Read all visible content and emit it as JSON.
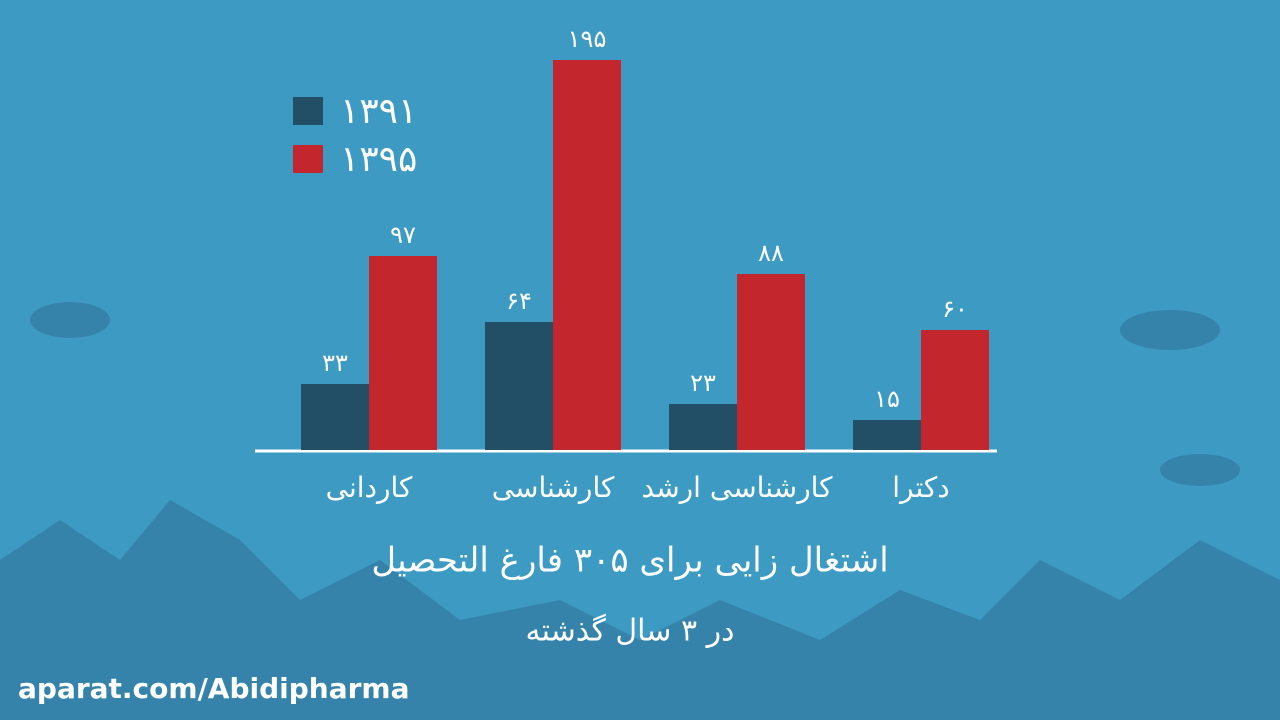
{
  "chart_data": {
    "type": "bar",
    "title": "اشتغال زایی برای ۳۰۵ فارغ التحصیل",
    "subtitle": "در ۳ سال گذشته",
    "categories": [
      "کاردانی",
      "کارشناسی",
      "کارشناسی ارشد",
      "دکترا"
    ],
    "series": [
      {
        "name": "۱۳۹۱",
        "color": "#234f66",
        "values": [
          33,
          64,
          23,
          15
        ],
        "value_labels": [
          "۳۳",
          "۶۴",
          "۲۳",
          "۱۵"
        ]
      },
      {
        "name": "۱۳۹۵",
        "color": "#c4262e",
        "values": [
          97,
          195,
          88,
          60
        ],
        "value_labels": [
          "۹۷",
          "۱۹۵",
          "۸۸",
          "۶۰"
        ]
      }
    ],
    "legend": "top-left",
    "watermark": "aparat.com/Abidipharma"
  }
}
